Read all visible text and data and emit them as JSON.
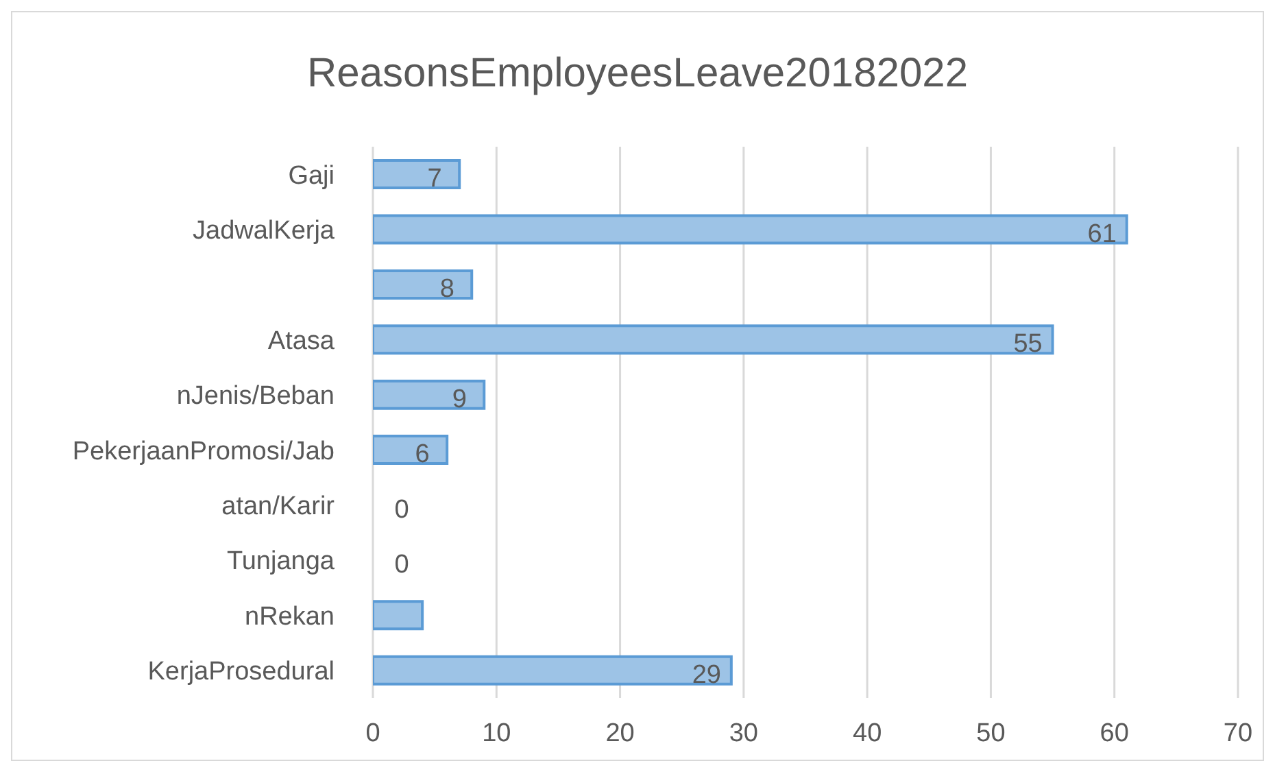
{
  "chart_data": {
    "type": "bar",
    "orientation": "horizontal",
    "title": "ReasonsEmployeesLeave20182022",
    "categories": [
      "Gaji",
      "JadwalKerja",
      null,
      "Atasa",
      "nJenis/Beban",
      "PekerjaanPromosi/Jab",
      "atan/Karir",
      "Tunjanga",
      "nRekan",
      "KerjaProsedural"
    ],
    "values": [
      7,
      61,
      8,
      55,
      9,
      6,
      0,
      0,
      4,
      29
    ],
    "value_labels": [
      "7",
      "61",
      "8",
      "55",
      "9",
      "6",
      "0",
      "0",
      null,
      "29"
    ],
    "color": "#9dc3e6",
    "xlim": [
      0,
      70
    ],
    "xticks": [
      0,
      10,
      20,
      30,
      40,
      50,
      60,
      70
    ],
    "grid": "x",
    "legend": false
  }
}
